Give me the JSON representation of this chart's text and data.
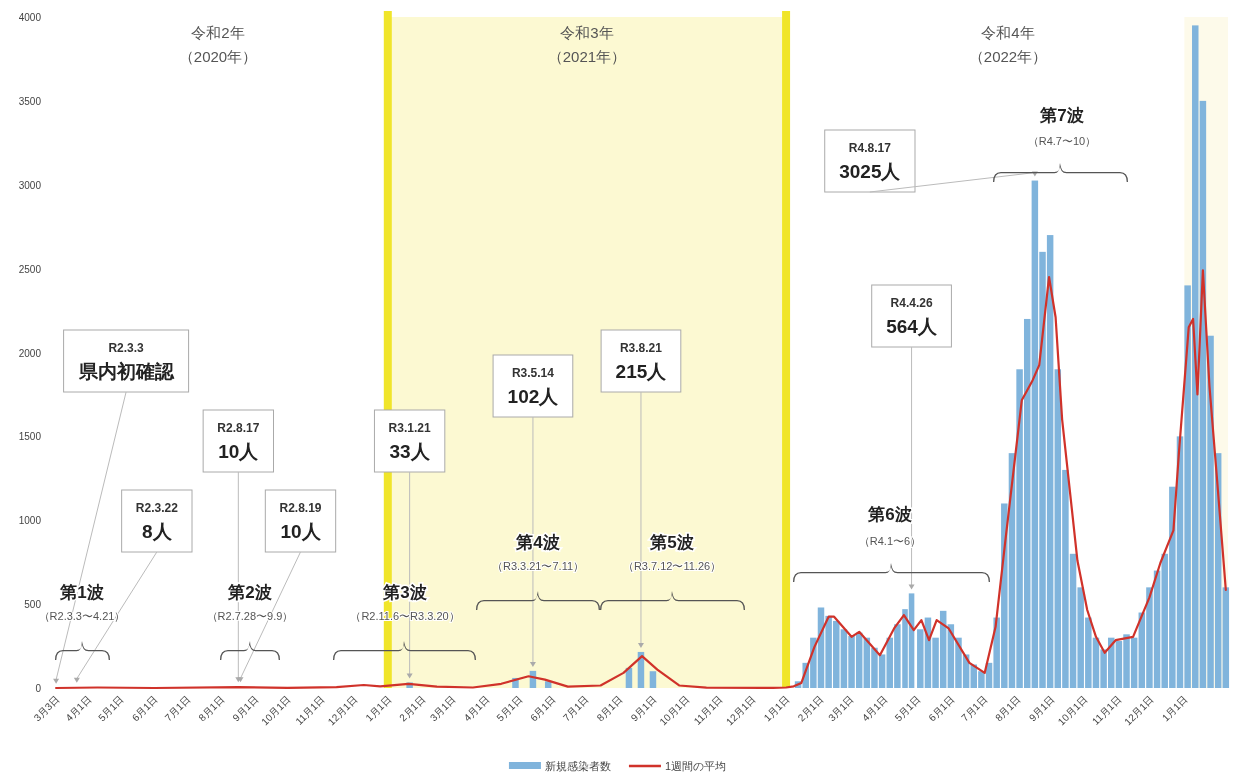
{
  "chart_data": {
    "type": "bar",
    "xlim": [
      "2020-03-02",
      "2023-02-10"
    ],
    "ylim": [
      0,
      4000
    ],
    "yticks": [
      0,
      500,
      1000,
      1500,
      2000,
      2500,
      3000,
      3500,
      4000
    ],
    "xticks": [
      {
        "value": "2020-03-03",
        "label": "3月3日"
      },
      {
        "value": "2020-04-01",
        "label": "4月1日"
      },
      {
        "value": "2020-05-01",
        "label": "5月1日"
      },
      {
        "value": "2020-06-01",
        "label": "6月1日"
      },
      {
        "value": "2020-07-01",
        "label": "7月1日"
      },
      {
        "value": "2020-08-01",
        "label": "8月1日"
      },
      {
        "value": "2020-09-01",
        "label": "9月1日"
      },
      {
        "value": "2020-10-01",
        "label": "10月1日"
      },
      {
        "value": "2020-11-01",
        "label": "11月1日"
      },
      {
        "value": "2020-12-01",
        "label": "12月1日"
      },
      {
        "value": "2021-01-01",
        "label": "1月1日"
      },
      {
        "value": "2021-02-01",
        "label": "2月1日"
      },
      {
        "value": "2021-03-01",
        "label": "3月1日"
      },
      {
        "value": "2021-04-01",
        "label": "4月1日"
      },
      {
        "value": "2021-05-01",
        "label": "5月1日"
      },
      {
        "value": "2021-06-01",
        "label": "6月1日"
      },
      {
        "value": "2021-07-01",
        "label": "7月1日"
      },
      {
        "value": "2021-08-01",
        "label": "8月1日"
      },
      {
        "value": "2021-09-01",
        "label": "9月1日"
      },
      {
        "value": "2021-10-01",
        "label": "10月1日"
      },
      {
        "value": "2021-11-01",
        "label": "11月1日"
      },
      {
        "value": "2021-12-01",
        "label": "12月1日"
      },
      {
        "value": "2022-01-01",
        "label": "1月1日"
      },
      {
        "value": "2022-02-01",
        "label": "2月1日"
      },
      {
        "value": "2022-03-01",
        "label": "3月1日"
      },
      {
        "value": "2022-04-01",
        "label": "4月1日"
      },
      {
        "value": "2022-05-01",
        "label": "5月1日"
      },
      {
        "value": "2022-06-01",
        "label": "6月1日"
      },
      {
        "value": "2022-07-01",
        "label": "7月1日"
      },
      {
        "value": "2022-08-01",
        "label": "8月1日"
      },
      {
        "value": "2022-09-01",
        "label": "9月1日"
      },
      {
        "value": "2022-10-01",
        "label": "10月1日"
      },
      {
        "value": "2022-11-01",
        "label": "11月1日"
      },
      {
        "value": "2022-12-01",
        "label": "12月1日"
      },
      {
        "value": "2023-01-01",
        "label": "1月1日"
      }
    ],
    "series": [
      {
        "name": "新規感染者数",
        "color": "#80b4dc",
        "x": [
          "2021-01-21",
          "2021-04-28",
          "2021-05-14",
          "2021-05-28",
          "2021-08-10",
          "2021-08-21",
          "2021-09-01",
          "2022-01-12",
          "2022-01-19",
          "2022-01-26",
          "2022-02-02",
          "2022-02-09",
          "2022-02-16",
          "2022-02-23",
          "2022-03-02",
          "2022-03-09",
          "2022-03-16",
          "2022-03-23",
          "2022-03-30",
          "2022-04-06",
          "2022-04-13",
          "2022-04-20",
          "2022-04-26",
          "2022-05-04",
          "2022-05-11",
          "2022-05-18",
          "2022-05-25",
          "2022-06-01",
          "2022-06-08",
          "2022-06-15",
          "2022-06-22",
          "2022-06-29",
          "2022-07-06",
          "2022-07-13",
          "2022-07-20",
          "2022-07-27",
          "2022-08-03",
          "2022-08-10",
          "2022-08-17",
          "2022-08-24",
          "2022-08-31",
          "2022-09-07",
          "2022-09-14",
          "2022-09-21",
          "2022-09-28",
          "2022-10-05",
          "2022-10-12",
          "2022-10-19",
          "2022-10-26",
          "2022-11-02",
          "2022-11-09",
          "2022-11-16",
          "2022-11-23",
          "2022-11-30",
          "2022-12-07",
          "2022-12-14",
          "2022-12-21",
          "2022-12-28",
          "2023-01-04",
          "2023-01-11",
          "2023-01-18",
          "2023-01-25",
          "2023-02-01",
          "2023-02-08"
        ],
        "values": [
          33,
          60,
          102,
          40,
          120,
          215,
          100,
          40,
          150,
          300,
          480,
          430,
          400,
          350,
          310,
          330,
          300,
          240,
          200,
          300,
          380,
          470,
          564,
          350,
          420,
          300,
          460,
          380,
          300,
          200,
          140,
          100,
          150,
          420,
          1100,
          1400,
          1900,
          2200,
          3025,
          2600,
          2700,
          1900,
          1300,
          800,
          600,
          420,
          300,
          230,
          300,
          280,
          320,
          300,
          450,
          600,
          700,
          800,
          1200,
          1500,
          2400,
          3950,
          3500,
          2100,
          1400,
          600
        ]
      },
      {
        "name": "1週間の平均",
        "type": "line",
        "color": "#d0322a",
        "x": [
          "2020-03-03",
          "2020-04-10",
          "2020-06-01",
          "2020-08-17",
          "2020-10-01",
          "2020-11-15",
          "2020-12-10",
          "2020-12-25",
          "2021-01-20",
          "2021-02-15",
          "2021-03-20",
          "2021-04-15",
          "2021-05-10",
          "2021-05-25",
          "2021-06-15",
          "2021-07-15",
          "2021-08-05",
          "2021-08-22",
          "2021-09-05",
          "2021-09-25",
          "2021-10-20",
          "2021-12-20",
          "2022-01-01",
          "2022-01-08",
          "2022-01-15",
          "2022-01-27",
          "2022-02-09",
          "2022-02-14",
          "2022-03-02",
          "2022-03-09",
          "2022-03-28",
          "2022-04-10",
          "2022-04-19",
          "2022-04-28",
          "2022-05-05",
          "2022-05-12",
          "2022-05-19",
          "2022-05-30",
          "2022-06-18",
          "2022-07-02",
          "2022-07-12",
          "2022-07-21",
          "2022-08-05",
          "2022-08-15",
          "2022-08-21",
          "2022-08-30",
          "2022-09-05",
          "2022-09-11",
          "2022-09-25",
          "2022-10-04",
          "2022-10-12",
          "2022-10-20",
          "2022-10-30",
          "2022-11-15",
          "2022-11-30",
          "2022-12-10",
          "2022-12-22",
          "2022-12-27",
          "2023-01-05",
          "2023-01-09",
          "2023-01-13",
          "2023-01-18",
          "2023-01-24",
          "2023-01-31",
          "2023-02-08"
        ],
        "values": [
          0,
          3,
          0,
          5,
          1,
          5,
          18,
          10,
          25,
          8,
          3,
          25,
          70,
          50,
          8,
          15,
          90,
          190,
          110,
          15,
          2,
          1,
          3,
          10,
          30,
          245,
          425,
          425,
          305,
          335,
          195,
          355,
          435,
          345,
          405,
          285,
          405,
          355,
          150,
          90,
          365,
          880,
          1715,
          1835,
          1925,
          2450,
          2210,
          1600,
          760,
          465,
          305,
          210,
          285,
          305,
          540,
          745,
          940,
          1400,
          2150,
          2200,
          1750,
          2490,
          1800,
          1240,
          585
        ]
      }
    ],
    "bands": [
      {
        "axis": "x",
        "from": "2021-01-01",
        "to": "2022-01-01",
        "label": "令和3年（2021年）",
        "color": "#fcf9d2"
      },
      {
        "axis": "x",
        "from": "2023-01-01",
        "to": "2023-02-10",
        "color": "#fdfaea"
      }
    ],
    "ref_lines": [
      {
        "axis": "x",
        "value": "2021-01-01",
        "color": "#f0e52a"
      },
      {
        "axis": "x",
        "value": "2022-01-01",
        "color": "#f0e52a"
      }
    ],
    "annotations": [
      {
        "text": "R2.3.3\n県内初確認",
        "x": "2020-03-03",
        "y": 1
      },
      {
        "text": "R2.3.22\n8人",
        "x": "2020-03-22",
        "y": 8
      },
      {
        "text": "R2.8.17\n10人",
        "x": "2020-08-17",
        "y": 10
      },
      {
        "text": "R2.8.19\n10人",
        "x": "2020-08-19",
        "y": 10
      },
      {
        "text": "R3.1.21\n33人",
        "x": "2021-01-21",
        "y": 33
      },
      {
        "text": "R3.5.14\n102人",
        "x": "2021-05-14",
        "y": 102
      },
      {
        "text": "R3.8.21\n215人",
        "x": "2021-08-21",
        "y": 215
      },
      {
        "text": "R4.4.26\n564人",
        "x": "2022-04-26",
        "y": 564
      },
      {
        "text": "R4.8.17\n3025人",
        "x": "2022-08-17",
        "y": 3025
      },
      "第1波",
      "（R2.3.3〜4.21）",
      "第2波",
      "（R2.7.28〜9.9）",
      "第3波",
      "（R2.11.6〜R3.3.20）",
      "第4波",
      "（R3.3.21〜7.11）",
      "第5波",
      "（R3.7.12〜11.26）",
      "第6波",
      "（R4.1〜6）",
      "第7波",
      "（R4.7〜10）",
      "令和2年",
      "（2020年）",
      "令和4年",
      "（2022年）"
    ],
    "legend": "bottom"
  }
}
